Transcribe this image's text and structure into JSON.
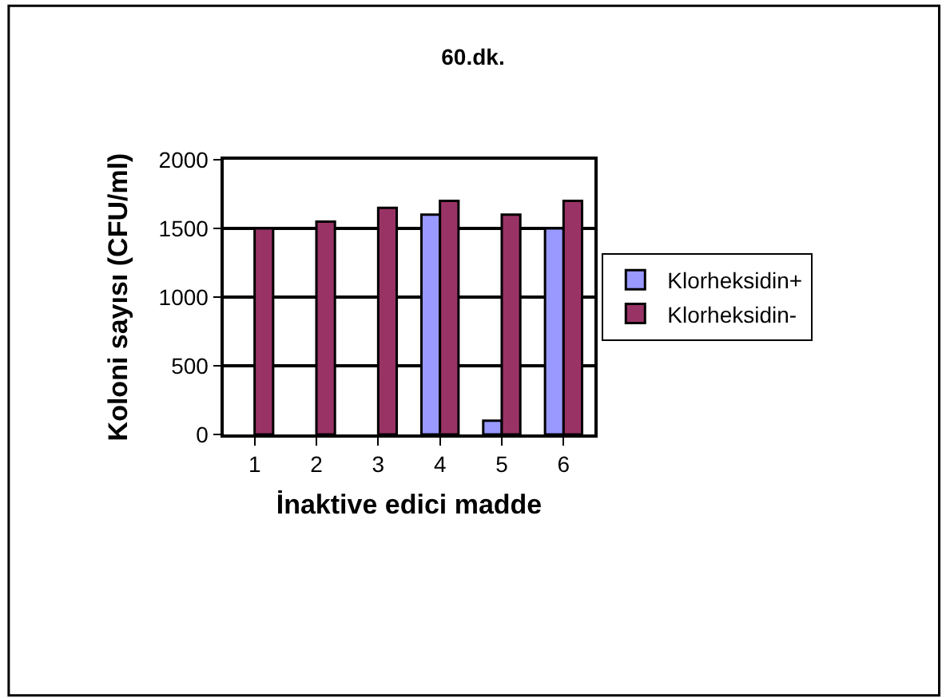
{
  "chart_data": {
    "type": "bar",
    "title": "60.dk.",
    "xlabel": "İnaktive edici madde",
    "ylabel": "Koloni sayısı (CFU/ml)",
    "categories": [
      "1",
      "2",
      "3",
      "4",
      "5",
      "6"
    ],
    "series": [
      {
        "name": "Klorheksidin+",
        "color": "#9999ff",
        "values": [
          null,
          null,
          null,
          1600,
          100,
          1500
        ]
      },
      {
        "name": "Klorheksidin-",
        "color": "#993366",
        "values": [
          1500,
          1550,
          1650,
          1700,
          1600,
          1700
        ]
      }
    ],
    "ylim": [
      0,
      2000
    ],
    "yticks": [
      0,
      500,
      1000,
      1500,
      2000
    ],
    "grid": "y",
    "legend": "right"
  }
}
